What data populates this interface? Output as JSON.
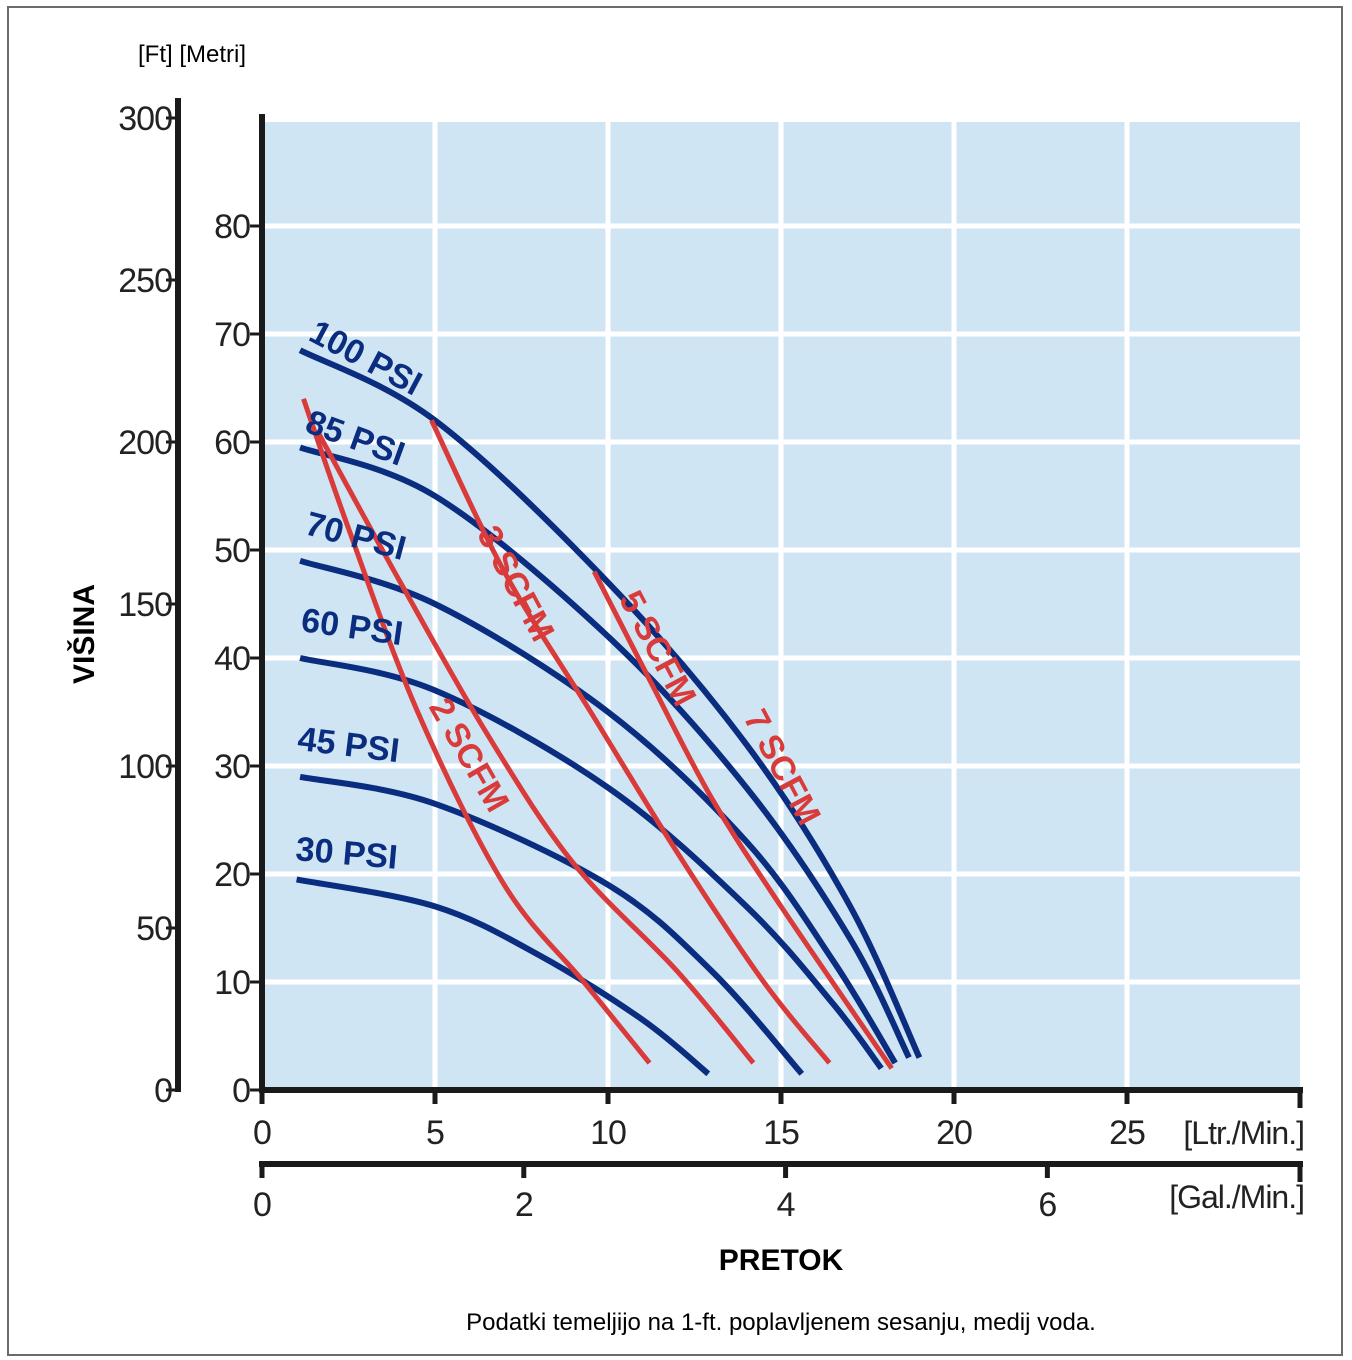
{
  "chart_data": {
    "type": "line",
    "units_label": "[Ft] [Metri]",
    "ylabel": "VIŠINA",
    "xlabel": "PRETOK",
    "footnote": "Podatki temeljijo na 1-ft. poplavljenem sesanju, medij voda.",
    "x_axis_lpm": {
      "ticks": [
        "0",
        "5",
        "10",
        "15",
        "20",
        "25"
      ],
      "unit": "[Ltr./Min.]",
      "range": [
        0,
        30
      ]
    },
    "x_axis_gpm": {
      "ticks": [
        "0",
        "2",
        "4",
        "6"
      ],
      "unit": "[Gal./Min.]",
      "range": [
        0,
        7.93
      ]
    },
    "y_axis_m": {
      "ticks": [
        "0",
        "10",
        "20",
        "30",
        "40",
        "50",
        "60",
        "70",
        "80"
      ],
      "range": [
        0,
        90
      ]
    },
    "y_axis_ft": {
      "ticks": [
        "0",
        "50",
        "100",
        "150",
        "200",
        "250",
        "300"
      ],
      "range": [
        0,
        300
      ]
    },
    "grid": true,
    "colors": {
      "plot_bg": "#cfe5f3",
      "grid": "#ffffff",
      "psi": "#0a2d80",
      "scfm": "#d93a3a",
      "axis": "#1a1a1a"
    },
    "series_psi": [
      {
        "name": "100 PSI",
        "points": [
          [
            1.1,
            68.5
          ],
          [
            5,
            62
          ],
          [
            10,
            47
          ],
          [
            14,
            32
          ],
          [
            17,
            17
          ],
          [
            19,
            3
          ]
        ]
      },
      {
        "name": "85 PSI",
        "points": [
          [
            1.1,
            59.5
          ],
          [
            5,
            55
          ],
          [
            10,
            42
          ],
          [
            14,
            28
          ],
          [
            17,
            14
          ],
          [
            18.7,
            3
          ]
        ]
      },
      {
        "name": "70 PSI",
        "points": [
          [
            1.1,
            49
          ],
          [
            5,
            45
          ],
          [
            10,
            35
          ],
          [
            14,
            23
          ],
          [
            16.5,
            12
          ],
          [
            18.3,
            2.5
          ]
        ]
      },
      {
        "name": "60 PSI",
        "points": [
          [
            1.1,
            40
          ],
          [
            5,
            37
          ],
          [
            10,
            28
          ],
          [
            14,
            17
          ],
          [
            16.5,
            8
          ],
          [
            17.9,
            2
          ]
        ]
      },
      {
        "name": "45 PSI",
        "points": [
          [
            1.1,
            29
          ],
          [
            5,
            26.5
          ],
          [
            10,
            19
          ],
          [
            13,
            11
          ],
          [
            15.6,
            1.5
          ]
        ]
      },
      {
        "name": "30 PSI",
        "points": [
          [
            1,
            19.5
          ],
          [
            5,
            17
          ],
          [
            8,
            12.5
          ],
          [
            11,
            6.5
          ],
          [
            12.9,
            1.5
          ]
        ]
      }
    ],
    "series_scfm": [
      {
        "name": "2 SCFM",
        "points": [
          [
            1.2,
            64
          ],
          [
            2.5,
            52
          ],
          [
            4.5,
            35
          ],
          [
            7,
            19
          ],
          [
            9.3,
            10
          ],
          [
            11.2,
            2.5
          ]
        ]
      },
      {
        "name": "3 SCFM",
        "points": [
          [
            1.6,
            61
          ],
          [
            4,
            47
          ],
          [
            6.5,
            33
          ],
          [
            9,
            21
          ],
          [
            12,
            11
          ],
          [
            14.2,
            2.5
          ]
        ]
      },
      {
        "name": "5 SCFM",
        "points": [
          [
            4.9,
            62
          ],
          [
            7,
            48
          ],
          [
            9.5,
            35
          ],
          [
            12,
            22
          ],
          [
            14.5,
            10
          ],
          [
            16.4,
            2.5
          ]
        ]
      },
      {
        "name": "7 SCFM",
        "points": [
          [
            9.6,
            48
          ],
          [
            11.2,
            38
          ],
          [
            13,
            27
          ],
          [
            15,
            17
          ],
          [
            18.2,
            2
          ]
        ]
      }
    ],
    "psi_labels": [
      {
        "text": "100 PSI",
        "x": 1.3,
        "y": 69.5,
        "angle": 28
      },
      {
        "text": "85 PSI",
        "x": 1.2,
        "y": 61,
        "angle": 20
      },
      {
        "text": "70 PSI",
        "x": 1.2,
        "y": 51.5,
        "angle": 15
      },
      {
        "text": "60 PSI",
        "x": 1.1,
        "y": 42.5,
        "angle": 8
      },
      {
        "text": "45 PSI",
        "x": 1.0,
        "y": 31.5,
        "angle": 7
      },
      {
        "text": "30 PSI",
        "x": 0.95,
        "y": 21.3,
        "angle": 5
      }
    ],
    "scfm_labels": [
      {
        "text": "2 SCFM",
        "x": 4.8,
        "y": 35.5,
        "angle": 60
      },
      {
        "text": "3 SCFM",
        "x": 6.2,
        "y": 51.5,
        "angle": 62
      },
      {
        "text": "5 SCFM",
        "x": 10.3,
        "y": 45.5,
        "angle": 62
      },
      {
        "text": "7 SCFM",
        "x": 13.9,
        "y": 34.5,
        "angle": 62
      }
    ]
  }
}
